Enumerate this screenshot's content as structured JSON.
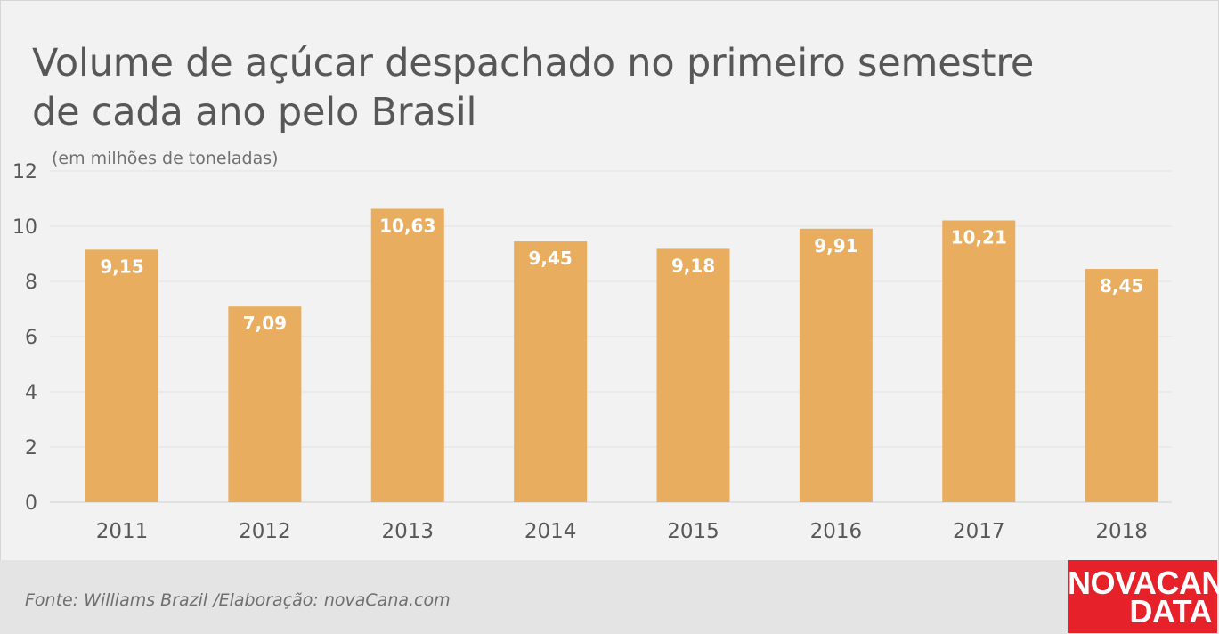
{
  "title_line1": "Volume de açúcar despachado no primeiro semestre",
  "title_line2": "de cada ano pelo Brasil",
  "unit_note": "(em milhões de toneladas)",
  "source": "Fonte: Williams Brazil /Elaboração: novaCana.com",
  "brand": {
    "line1": "NOVACANA",
    "line2": "DATA"
  },
  "colors": {
    "bar": "#e9ad5f",
    "bar_label": "#ffffff",
    "axis_text": "#585858",
    "grid": "#e2e2e2",
    "brand_bg": "#e62129"
  },
  "chart_data": {
    "type": "bar",
    "categories": [
      "2011",
      "2012",
      "2013",
      "2014",
      "2015",
      "2016",
      "2017",
      "2018"
    ],
    "values": [
      9.15,
      7.09,
      10.63,
      9.45,
      9.18,
      9.91,
      10.21,
      8.45
    ],
    "value_labels": [
      "9,15",
      "7,09",
      "10,63",
      "9,45",
      "9,18",
      "9,91",
      "10,21",
      "8,45"
    ],
    "ylim": [
      0,
      12
    ],
    "yticks": [
      0,
      2,
      4,
      6,
      8,
      10,
      12
    ],
    "grid": true,
    "legend": "none"
  }
}
